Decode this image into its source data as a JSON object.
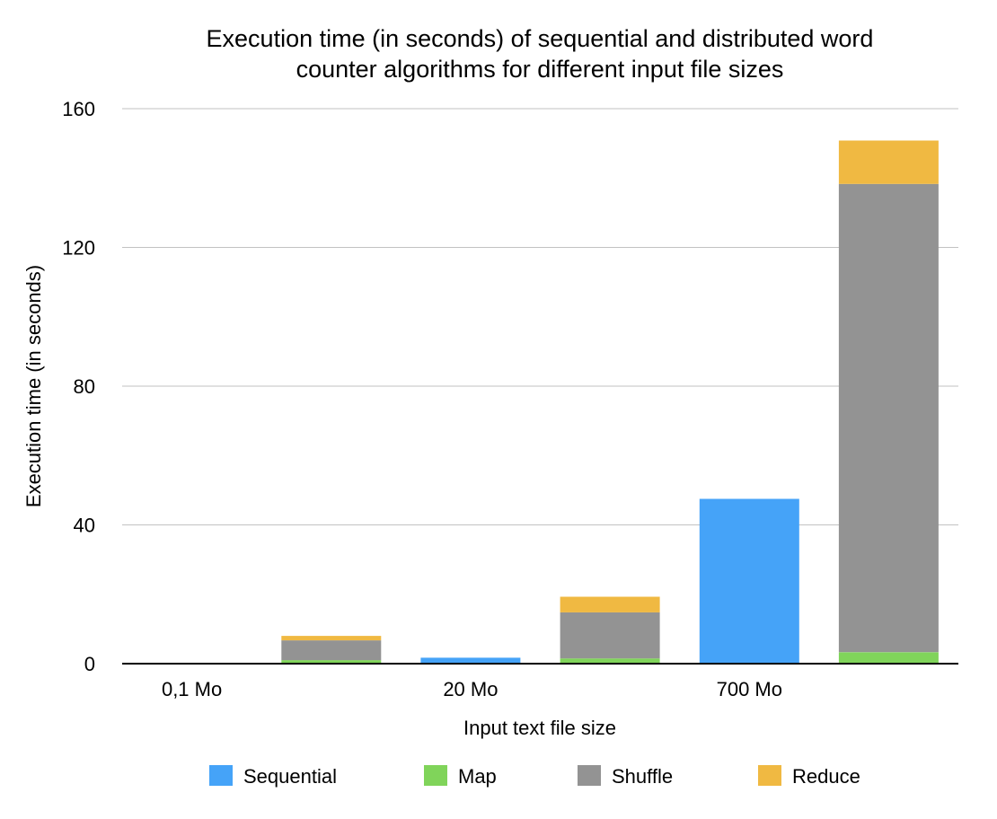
{
  "chart_data": {
    "type": "bar",
    "stacked": true,
    "title_lines": [
      "Execution time (in seconds) of sequential and distributed word",
      "counter algorithms for different input file sizes"
    ],
    "xlabel": "Input text file size",
    "ylabel": "Execution time (in seconds)",
    "ylim": [
      0,
      160
    ],
    "yticks": [
      0,
      40,
      80,
      120,
      160
    ],
    "grid": true,
    "legend_position": "bottom",
    "categories": [
      "0,1 Mo",
      "20 Mo",
      "700 Mo"
    ],
    "bars": [
      {
        "category": "0,1 Mo",
        "algorithm": "Sequential",
        "stack": [
          {
            "series": "Sequential",
            "value": 0.0
          }
        ]
      },
      {
        "category": "0,1 Mo",
        "algorithm": "Distributed",
        "stack": [
          {
            "series": "Map",
            "value": 1.0
          },
          {
            "series": "Shuffle",
            "value": 5.7
          },
          {
            "series": "Reduce",
            "value": 1.3
          }
        ]
      },
      {
        "category": "20 Mo",
        "algorithm": "Sequential",
        "stack": [
          {
            "series": "Sequential",
            "value": 1.7
          }
        ]
      },
      {
        "category": "20 Mo",
        "algorithm": "Distributed",
        "stack": [
          {
            "series": "Map",
            "value": 1.5
          },
          {
            "series": "Shuffle",
            "value": 13.3
          },
          {
            "series": "Reduce",
            "value": 4.5
          }
        ]
      },
      {
        "category": "700 Mo",
        "algorithm": "Sequential",
        "stack": [
          {
            "series": "Sequential",
            "value": 47.5
          }
        ]
      },
      {
        "category": "700 Mo",
        "algorithm": "Distributed",
        "stack": [
          {
            "series": "Map",
            "value": 3.3
          },
          {
            "series": "Shuffle",
            "value": 135.0
          },
          {
            "series": "Reduce",
            "value": 12.5
          }
        ]
      }
    ],
    "series": [
      {
        "name": "Sequential",
        "color": "#45a3f8"
      },
      {
        "name": "Map",
        "color": "#80d45a"
      },
      {
        "name": "Shuffle",
        "color": "#939393"
      },
      {
        "name": "Reduce",
        "color": "#f0b942"
      }
    ],
    "grid_color": "#c2c2c2",
    "axis_color": "#000000"
  }
}
